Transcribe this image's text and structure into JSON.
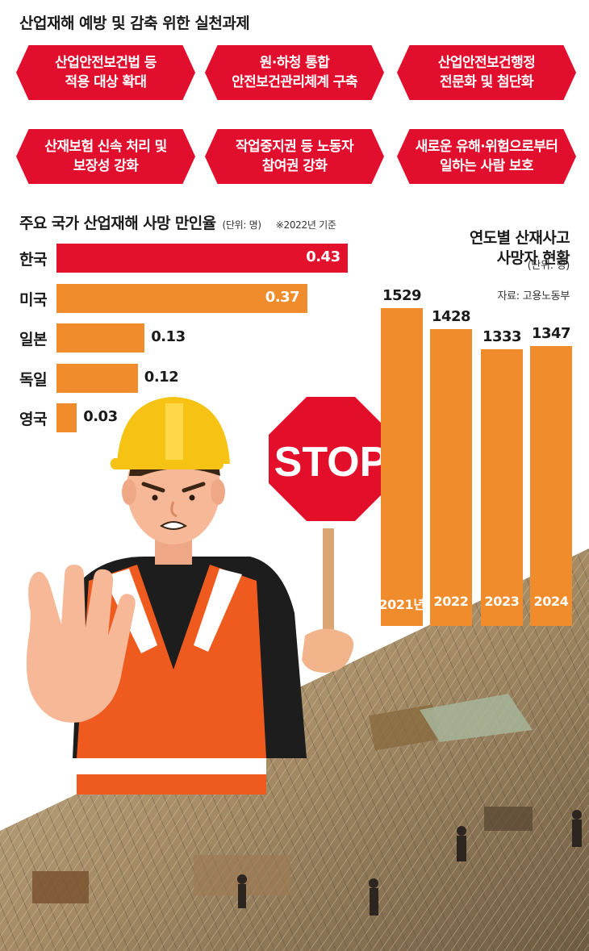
{
  "header": {
    "title": "산업재해 예방 및 감축 위한 실천과제"
  },
  "tasks": [
    {
      "text": "산업안전보건법 등\n적용 대상 확대"
    },
    {
      "text": "원·하청 통합\n안전보건관리체계 구축"
    },
    {
      "text": "산업안전보건행정\n전문화 및 첨단화"
    },
    {
      "text": "산재보험 신속 처리 및\n보장성 강화"
    },
    {
      "text": "작업중지권 등 노동자\n참여권 강화"
    },
    {
      "text": "새로운 유해·위험으로부터\n일하는 사람 보호"
    }
  ],
  "colors": {
    "red": "#e4112c",
    "orange": "#f08c2c",
    "task_red": "#e10f2d"
  },
  "illustration": {
    "stop_sign_text": "STOP",
    "icons": [
      "worker-with-hardhat-icon",
      "stop-sign-icon",
      "construction-site-photo"
    ]
  },
  "chart_data": [
    {
      "type": "bar",
      "orientation": "horizontal",
      "title": "주요 국가 산업재해 사망 만인율",
      "unit_note": "(단위: 명)",
      "basis_note": "※2022년 기준",
      "categories": [
        "한국",
        "미국",
        "일본",
        "독일",
        "영국"
      ],
      "values": [
        0.43,
        0.37,
        0.13,
        0.12,
        0.03
      ],
      "value_labels": [
        "0.43",
        "0.37",
        "0.13",
        "0.12",
        "0.03"
      ],
      "highlight_category": "한국",
      "xlim": [
        0,
        0.45
      ]
    },
    {
      "type": "bar",
      "orientation": "vertical",
      "title": "연도별 산재사고\n사망자 현황",
      "unit_note": "(단위: 명)",
      "source": "자료: 고용노동부",
      "categories": [
        "2021년",
        "2022",
        "2023",
        "2024"
      ],
      "values": [
        1529,
        1428,
        1333,
        1347
      ],
      "value_labels": [
        "1529",
        "1428",
        "1333",
        "1347"
      ]
    }
  ]
}
